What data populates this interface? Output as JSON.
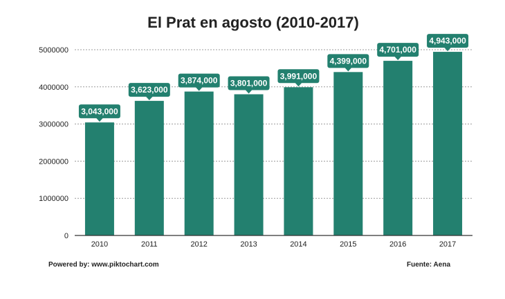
{
  "chart_data": {
    "type": "bar",
    "title": "El Prat en agosto (2010-2017)",
    "categories": [
      "2010",
      "2011",
      "2012",
      "2013",
      "2014",
      "2015",
      "2016",
      "2017"
    ],
    "values": [
      3043000,
      3623000,
      3874000,
      3801000,
      3991000,
      4399000,
      4701000,
      4943000
    ],
    "data_labels": [
      "3,043,000",
      "3,623,000",
      "3,874,000",
      "3,801,000",
      "3,991,000",
      "4,399,000",
      "4,701,000",
      "4,943,000"
    ],
    "y_ticks": [
      0,
      1000000,
      2000000,
      3000000,
      4000000,
      5000000
    ],
    "y_tick_labels": [
      "0",
      "1000000",
      "2000000",
      "3000000",
      "4000000",
      "5000000"
    ],
    "ylim": [
      0,
      5000000
    ],
    "xlabel": "",
    "ylabel": "",
    "grid": true,
    "bar_color": "#23806f",
    "label_color": "#23806f"
  },
  "footer": {
    "powered_by": "Powered by: www.piktochart.com",
    "source": "Fuente: Aena"
  }
}
